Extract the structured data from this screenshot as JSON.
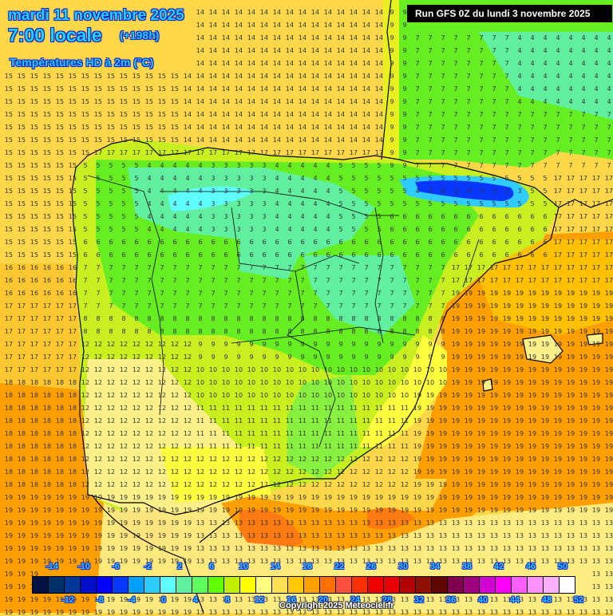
{
  "header": {
    "date_line": "mardi 11 novembre 2025",
    "time_line": "7:00 locale",
    "forecast_offset": "(+198h)",
    "variable_title": "Températures HD à 2m (°C)"
  },
  "run_info": "Run GFS 0Z du lundi 3 novembre 2025",
  "copyright": "Copyright 2025 Meteociel.fr",
  "colorbar": {
    "colors": [
      "#001040",
      "#00306a",
      "#003896",
      "#0010c8",
      "#0000ff",
      "#0838ff",
      "#00a0ff",
      "#30ccff",
      "#60ffff",
      "#60f0a0",
      "#60ff60",
      "#60ff00",
      "#c0f000",
      "#ffff00",
      "#ffff80",
      "#ffe050",
      "#ffc800",
      "#ffa000",
      "#ff7000",
      "#ff5040",
      "#ff3000",
      "#f00000",
      "#e80000",
      "#b00000",
      "#901000",
      "#600800",
      "#800050",
      "#a00080",
      "#d000d0",
      "#ff00ff",
      "#ff60ff",
      "#ff90ff",
      "#ffb0ff",
      "#ffffff"
    ],
    "top_labels": [
      "-14",
      "-10",
      "-6",
      "-2",
      "2",
      "6",
      "10",
      "14",
      "18",
      "22",
      "26",
      "30",
      "34",
      "38",
      "42",
      "46",
      "50"
    ],
    "bottom_labels": [
      "-12",
      "-8",
      "-4",
      "0",
      "4",
      "8",
      "12",
      "16",
      "20",
      "24",
      "28",
      "32",
      "36",
      "40",
      "44",
      "48",
      "52"
    ]
  },
  "map": {
    "region": "Iberian Peninsula",
    "unit": "°C",
    "grid_summary": {
      "atlantic_north": "14-15",
      "atlantic_west": "15-18",
      "atlantic_southwest": "18-20",
      "mediterranean": "17-20",
      "france_southwest": "7-9",
      "pyrenees_min": "-5",
      "northern_plateau": "1-6",
      "central_spain": "6-10",
      "south_portugal_andalusia": "11-14",
      "morocco": "11-15",
      "balearic_islands": "11-14"
    }
  }
}
